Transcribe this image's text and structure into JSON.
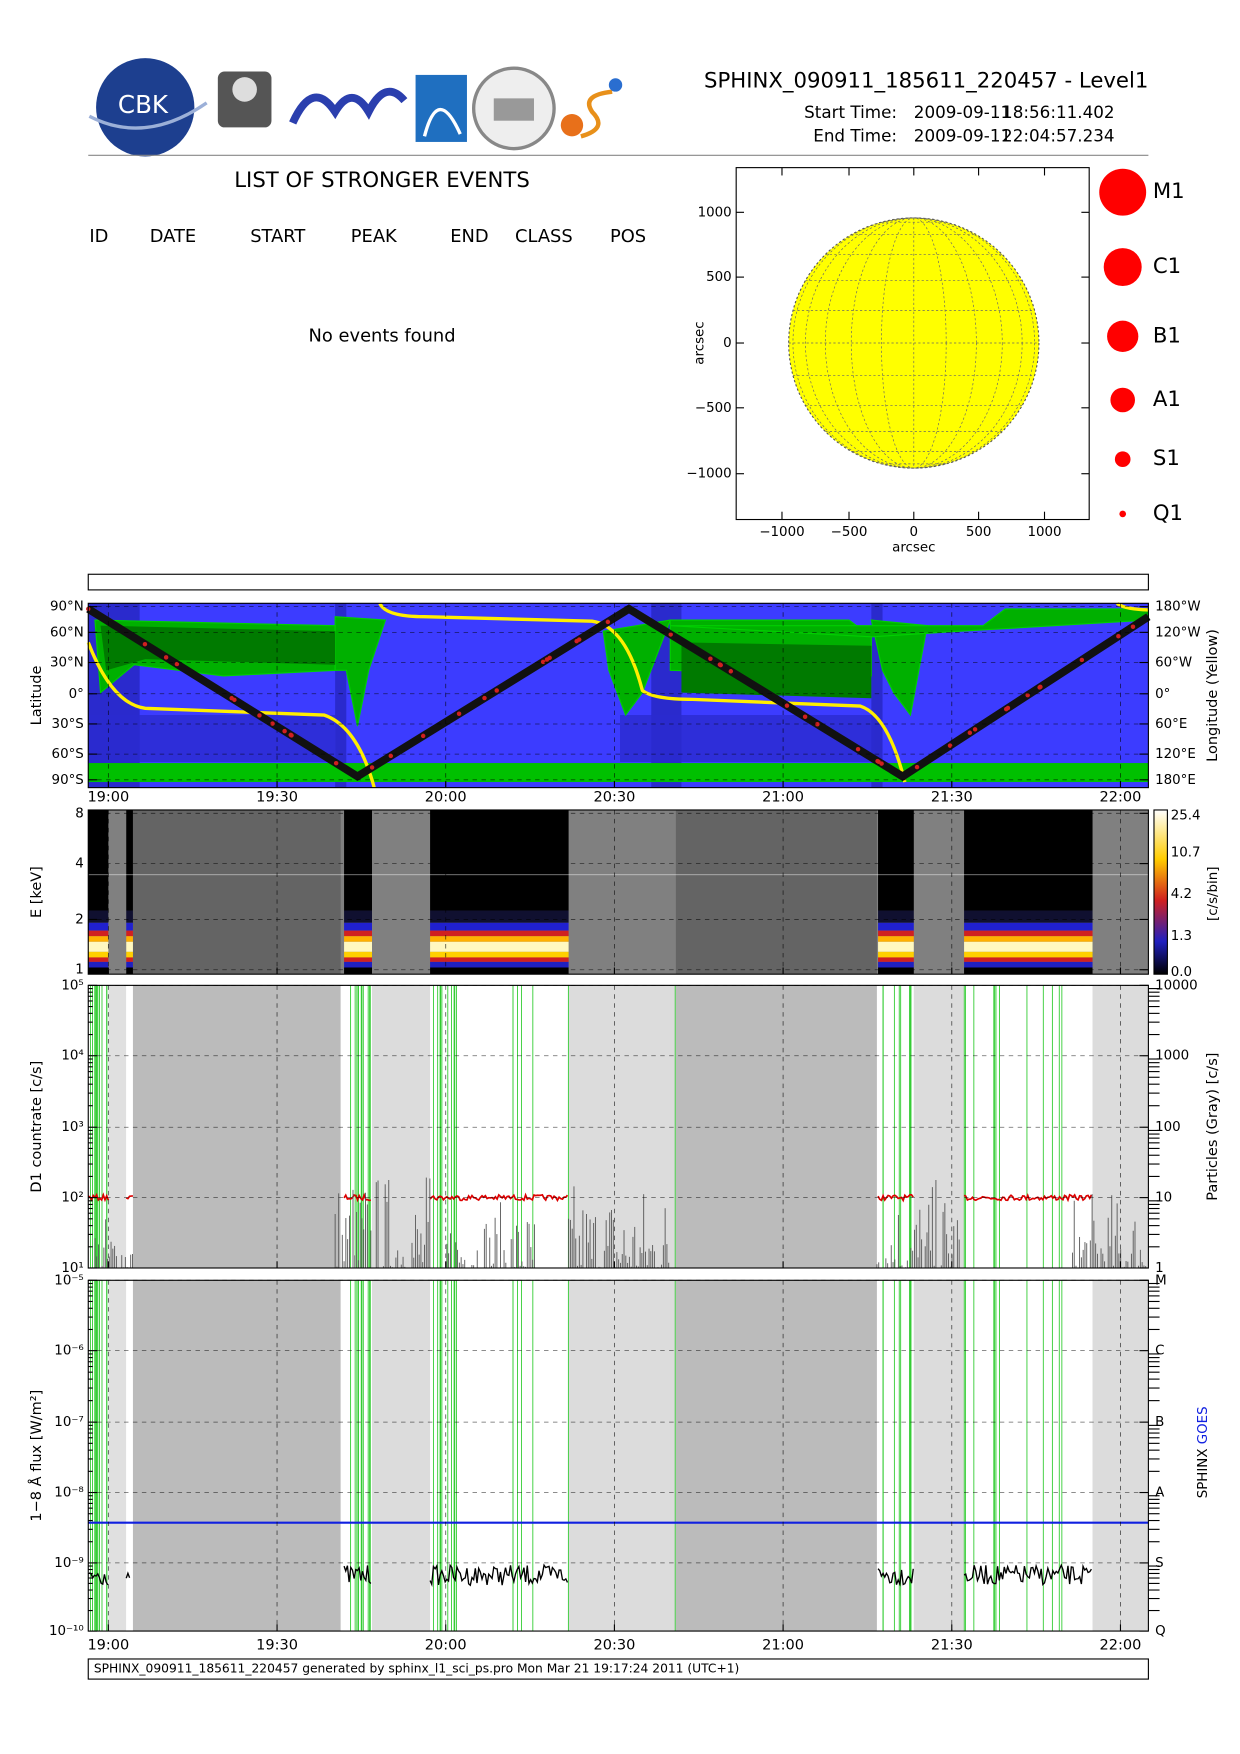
{
  "header": {
    "title": "SPHINX_090911_185611_220457 - Level1",
    "logo_text": "CBK",
    "start_label": "Start Time:",
    "start_date": "2009-09-11",
    "start_time": "18:56:11.402",
    "end_label": "End Time:",
    "end_date": "2009-09-11",
    "end_time": "22:04:57.234"
  },
  "events": {
    "title": "LIST OF STRONGER EVENTS",
    "columns": [
      "ID",
      "DATE",
      "START",
      "PEAK",
      "END",
      "CLASS",
      "POS"
    ],
    "message": "No events found"
  },
  "disk": {
    "xticks": [
      "−1000",
      "−500",
      "0",
      "500",
      "1000"
    ],
    "yticks": [
      "1000",
      "500",
      "0",
      "−500",
      "−1000"
    ],
    "xlabel": "arcsec",
    "ylabel": "arcsec"
  },
  "legend": [
    "M1",
    "C1",
    "B1",
    "A1",
    "S1",
    "Q1"
  ],
  "time_ticks": [
    "19:00",
    "19:30",
    "20:00",
    "20:30",
    "21:00",
    "21:30",
    "22:00"
  ],
  "panels": [
    {
      "ylabel": "Latitude",
      "yticks": [
        "90°N",
        "60°N",
        "30°N",
        "0°",
        "30°S",
        "60°S",
        "90°S"
      ],
      "y2label": "Longitude (Yellow)",
      "y2ticks": [
        "180°W",
        "120°W",
        "60°W",
        "0°",
        "60°E",
        "120°E",
        "180°E"
      ]
    },
    {
      "ylabel": "E [keV]",
      "yticks": [
        "8",
        "4",
        "2",
        "1"
      ],
      "colorbar_label": "[c/s/bin]",
      "colorbar_ticks": [
        "25.4",
        "10.7",
        "4.2",
        "1.3",
        "0.0"
      ]
    },
    {
      "ylabel": "D1 countrate [c/s]",
      "yticks": [
        "10⁵",
        "10⁴",
        "10³",
        "10²",
        "10¹"
      ],
      "y2label": "Particles (Gray) [c/s]",
      "y2ticks": [
        "10000",
        "1000",
        "100",
        "10",
        "1"
      ]
    },
    {
      "ylabel": "1−8 Å flux [W/m²]",
      "yticks": [
        "10⁻⁵",
        "10⁻⁶",
        "10⁻⁷",
        "10⁻⁸",
        "10⁻⁹",
        "10⁻¹⁰"
      ],
      "y2ticks": [
        "M",
        "C",
        "B",
        "A",
        "S",
        "Q"
      ],
      "y2label": [
        "SPHINX",
        "GOES"
      ]
    }
  ],
  "footer": "SPHINX_090911_185611_220457 generated by sphinx_l1_sci_ps.pro Mon Mar 21 19:17:24 2011 (UTC+1)"
}
